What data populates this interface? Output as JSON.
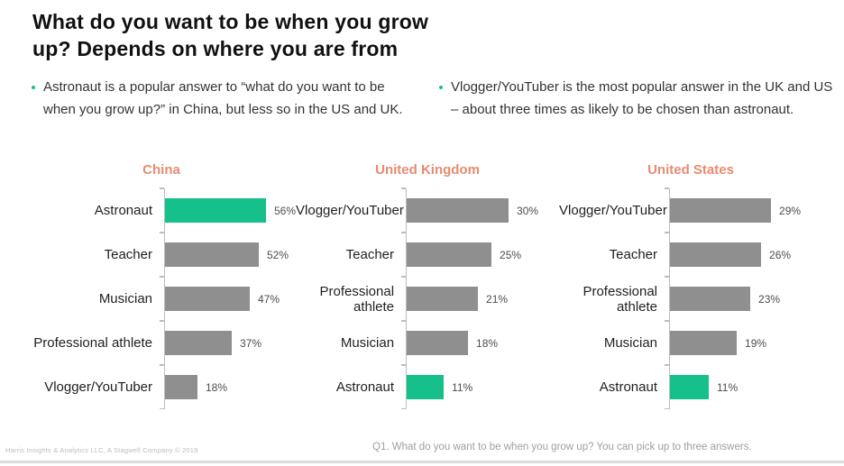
{
  "title": {
    "line1": "What do you want to be when you grow",
    "line2": "up? Depends on where you are from"
  },
  "bullets": [
    {
      "text": "Astronaut is a popular answer to “what do you want to be when you grow up?” in China, but less so in the US and UK."
    },
    {
      "text": "Vlogger/YouTuber is the most popular answer in the UK and US – about three times as likely to be chosen than astronaut."
    }
  ],
  "colors": {
    "accent_green": "#15C08A",
    "bar_gray": "#8F8F8F",
    "chart_title_orange": "#E78B70"
  },
  "chart_data": [
    {
      "type": "bar",
      "orientation": "horizontal",
      "title": "China",
      "categories": [
        "Astronaut",
        "Teacher",
        "Musician",
        "Professional athlete",
        "Vlogger/YouTuber"
      ],
      "values": [
        56,
        52,
        47,
        37,
        18
      ],
      "value_suffix": "%",
      "highlight_category": "Astronaut",
      "highlight_color": "#15C08A",
      "bar_color": "#8F8F8F",
      "xlim": [
        0,
        60
      ],
      "grid": false,
      "legend": false
    },
    {
      "type": "bar",
      "orientation": "horizontal",
      "title": "United Kingdom",
      "categories": [
        "Vlogger/YouTuber",
        "Teacher",
        "Professional athlete",
        "Musician",
        "Astronaut"
      ],
      "values": [
        30,
        25,
        21,
        18,
        11
      ],
      "value_suffix": "%",
      "highlight_category": "Astronaut",
      "highlight_color": "#15C08A",
      "bar_color": "#8F8F8F",
      "xlim": [
        0,
        32
      ],
      "grid": false,
      "legend": false
    },
    {
      "type": "bar",
      "orientation": "horizontal",
      "title": "United States",
      "categories": [
        "Vlogger/YouTuber",
        "Teacher",
        "Professional athlete",
        "Musician",
        "Astronaut"
      ],
      "values": [
        29,
        26,
        23,
        19,
        11
      ],
      "value_suffix": "%",
      "highlight_category": "Astronaut",
      "highlight_color": "#15C08A",
      "bar_color": "#8F8F8F",
      "xlim": [
        0,
        31
      ],
      "grid": false,
      "legend": false
    }
  ],
  "footer": {
    "source": "Harris Insights & Analytics LLC, A Stagwell Company © 2019",
    "question": "Q1. What do you want to be when you grow up? You can pick up to three answers."
  }
}
